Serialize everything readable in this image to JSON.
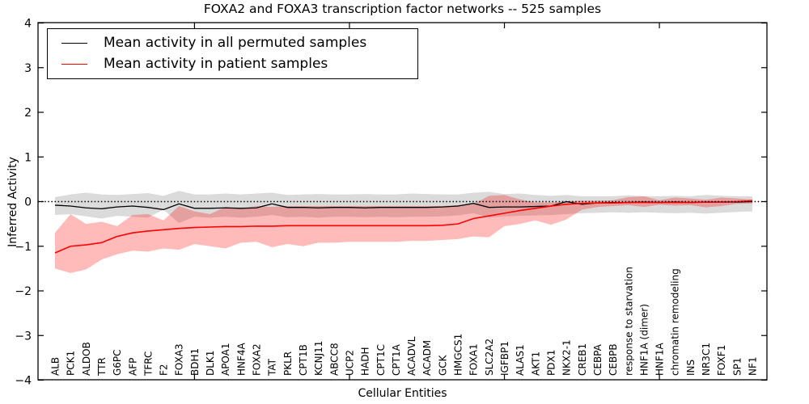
{
  "figure": {
    "title": "FOXA2 and FOXA3 transcription factor networks -- 525 samples",
    "background_color": "#ffffff",
    "axis_color": "#000000"
  },
  "legend": {
    "position": "upper left",
    "entries": [
      {
        "label": "Mean activity in all permuted samples",
        "color": "#000000"
      },
      {
        "label": "Mean activity in patient samples",
        "color": "#ff0000"
      }
    ]
  },
  "chart_data": {
    "type": "line",
    "title": "FOXA2 and FOXA3 transcription factor networks -- 525 samples",
    "xlabel": "Cellular Entities",
    "ylabel": "Inferred Activity",
    "ylim": [
      -4,
      4
    ],
    "yticks": [
      -4,
      -3,
      -2,
      -1,
      0,
      1,
      2,
      3,
      4
    ],
    "xtick_indices": [
      9,
      19,
      29,
      39
    ],
    "grid": false,
    "zero_line": {
      "y": 0,
      "style": "dotted",
      "color": "#000000"
    },
    "x_label_rotation": 90,
    "categories": [
      "ALB",
      "PCK1",
      "ALDOB",
      "TTR",
      "G6PC",
      "AFP",
      "TFRC",
      "F2",
      "FOXA3",
      "BDH1",
      "DLK1",
      "APOA1",
      "HNF4A",
      "FOXA2",
      "TAT",
      "PKLR",
      "CPT1B",
      "KCNJ11",
      "ABCC8",
      "UCP2",
      "HADH",
      "CPT1C",
      "CPT1A",
      "ACADVL",
      "ACADM",
      "GCK",
      "HMGCS1",
      "FOXA1",
      "SLC2A2",
      "IGFBP1",
      "ALAS1",
      "AKT1",
      "PDX1",
      "NKX2-1",
      "CREB1",
      "CEBPA",
      "CEBPB",
      "response to starvation",
      "HNF1A (dimer)",
      "HNF1A",
      "chromatin remodeling",
      "INS",
      "NR3C1",
      "FOXF1",
      "SP1",
      "NF1"
    ],
    "series": [
      {
        "name": "Mean activity in all permuted samples",
        "color": "#000000",
        "line_width": 1.3,
        "band_color": "#8f8f8f",
        "band_opacity": 0.32,
        "values": [
          -0.08,
          -0.1,
          -0.14,
          -0.16,
          -0.12,
          -0.1,
          -0.13,
          -0.18,
          -0.05,
          -0.15,
          -0.15,
          -0.14,
          -0.15,
          -0.14,
          -0.05,
          -0.13,
          -0.13,
          -0.14,
          -0.13,
          -0.13,
          -0.14,
          -0.13,
          -0.13,
          -0.13,
          -0.13,
          -0.12,
          -0.1,
          -0.04,
          -0.13,
          -0.12,
          -0.12,
          -0.11,
          -0.1,
          0.0,
          -0.06,
          -0.03,
          -0.02,
          -0.02,
          -0.01,
          -0.02,
          -0.01,
          -0.02,
          -0.01,
          -0.01,
          -0.01,
          0.0
        ],
        "band_upper": [
          0.1,
          0.16,
          0.2,
          0.16,
          0.15,
          0.17,
          0.19,
          0.13,
          0.24,
          0.16,
          0.16,
          0.18,
          0.16,
          0.18,
          0.2,
          0.15,
          0.16,
          0.17,
          0.16,
          0.16,
          0.17,
          0.16,
          0.16,
          0.18,
          0.17,
          0.16,
          0.16,
          0.2,
          0.22,
          0.17,
          0.18,
          0.15,
          0.13,
          0.15,
          0.12,
          0.12,
          0.12,
          0.14,
          0.12,
          0.12,
          0.13,
          0.12,
          0.15,
          0.13,
          0.12,
          0.12
        ],
        "band_lower": [
          -0.3,
          -0.28,
          -0.33,
          -0.38,
          -0.32,
          -0.34,
          -0.36,
          -0.18,
          -0.48,
          -0.34,
          -0.36,
          -0.34,
          -0.36,
          -0.34,
          -0.3,
          -0.35,
          -0.34,
          -0.36,
          -0.34,
          -0.34,
          -0.35,
          -0.34,
          -0.35,
          -0.34,
          -0.34,
          -0.33,
          -0.31,
          -0.26,
          -0.36,
          -0.33,
          -0.32,
          -0.31,
          -0.3,
          -0.28,
          -0.26,
          -0.25,
          -0.24,
          -0.25,
          -0.24,
          -0.25,
          -0.26,
          -0.25,
          -0.27,
          -0.25,
          -0.23,
          -0.22
        ]
      },
      {
        "name": "Mean activity in patient samples",
        "color": "#ff0000",
        "line_width": 1.6,
        "band_color": "#ff0000",
        "band_opacity": 0.27,
        "values": [
          -1.15,
          -1.0,
          -0.97,
          -0.92,
          -0.78,
          -0.7,
          -0.66,
          -0.63,
          -0.6,
          -0.58,
          -0.57,
          -0.56,
          -0.56,
          -0.55,
          -0.55,
          -0.54,
          -0.54,
          -0.54,
          -0.54,
          -0.54,
          -0.54,
          -0.54,
          -0.54,
          -0.54,
          -0.54,
          -0.53,
          -0.5,
          -0.38,
          -0.32,
          -0.26,
          -0.2,
          -0.15,
          -0.1,
          -0.06,
          -0.04,
          -0.03,
          -0.03,
          -0.02,
          -0.02,
          -0.02,
          -0.02,
          -0.02,
          -0.01,
          -0.01,
          0.0,
          0.02
        ],
        "band_upper": [
          -0.7,
          -0.28,
          -0.5,
          -0.45,
          -0.55,
          -0.3,
          -0.28,
          -0.42,
          -0.1,
          -0.22,
          -0.28,
          -0.12,
          -0.15,
          -0.1,
          -0.12,
          -0.1,
          -0.1,
          -0.1,
          -0.1,
          -0.1,
          -0.1,
          -0.1,
          -0.1,
          -0.1,
          -0.1,
          -0.1,
          -0.08,
          -0.06,
          0.13,
          0.15,
          0.05,
          -0.02,
          -0.02,
          0.0,
          0.02,
          0.02,
          0.03,
          0.1,
          0.12,
          0.03,
          0.09,
          0.07,
          0.04,
          0.09,
          0.07,
          0.05
        ],
        "band_lower": [
          -1.5,
          -1.6,
          -1.52,
          -1.3,
          -1.18,
          -1.1,
          -1.12,
          -1.05,
          -1.08,
          -0.95,
          -1.0,
          -1.05,
          -0.92,
          -0.9,
          -1.02,
          -0.95,
          -1.0,
          -0.92,
          -0.92,
          -0.9,
          -0.9,
          -0.9,
          -0.9,
          -0.88,
          -0.88,
          -0.86,
          -0.84,
          -0.78,
          -0.8,
          -0.55,
          -0.5,
          -0.42,
          -0.52,
          -0.4,
          -0.18,
          -0.12,
          -0.1,
          -0.08,
          -0.12,
          -0.07,
          -0.09,
          -0.08,
          -0.13,
          -0.1,
          -0.05,
          -0.04
        ]
      }
    ]
  }
}
